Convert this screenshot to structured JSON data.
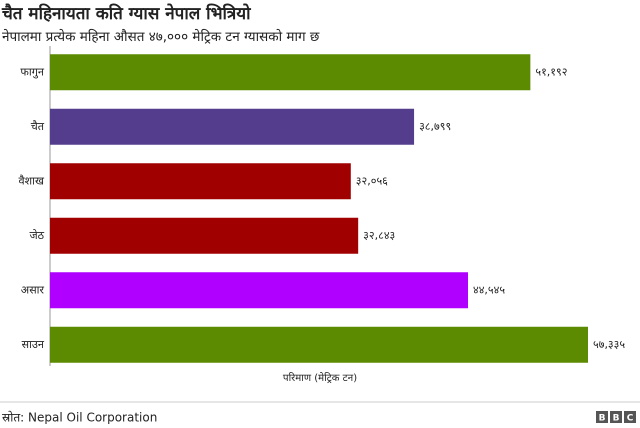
{
  "chart_data": {
    "type": "bar",
    "orientation": "horizontal",
    "title": "चैत महिनायता कति ग्यास नेपाल भित्रियो",
    "subtitle": "नेपालमा प्रत्येक महिना औसत ४७,००० मेट्रिक टन ग्यासको माग छ",
    "categories": [
      "फागुन",
      "चैत",
      "वैशाख",
      "जेठ",
      "असार",
      "साउन"
    ],
    "values": [
      51192,
      38799,
      32056,
      32843,
      44545,
      57335
    ],
    "value_labels": [
      "५१,१९२",
      "३८,७९९",
      "३२,०५६",
      "३२,८४३",
      "४४,५४५",
      "५७,३३५"
    ],
    "colors": [
      "#5c8a00",
      "#553d8e",
      "#a10000",
      "#a10000",
      "#b000ff",
      "#5c8a00"
    ],
    "x_label": "परिमाण (मेट्रिक टन)",
    "source": "स्रोत: Nepal Oil Corporation",
    "logo": [
      "B",
      "B",
      "C"
    ]
  }
}
